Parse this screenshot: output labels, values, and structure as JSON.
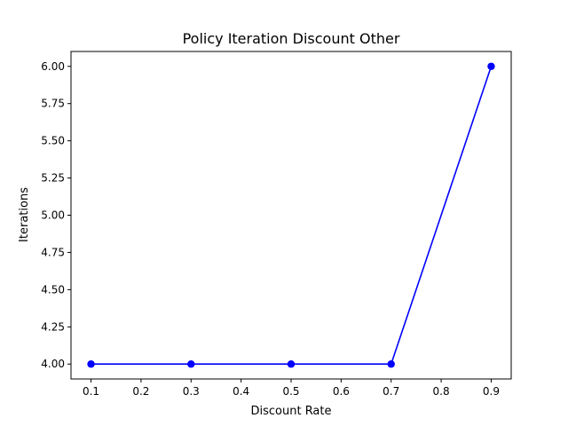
{
  "chart_data": {
    "type": "line",
    "title": "Policy Iteration Discount Other",
    "xlabel": "Discount Rate",
    "ylabel": "Iterations",
    "xlim": [
      0.06,
      0.94
    ],
    "ylim": [
      3.9,
      6.1
    ],
    "xticks": [
      "0.1",
      "0.2",
      "0.3",
      "0.4",
      "0.5",
      "0.6",
      "0.7",
      "0.8",
      "0.9"
    ],
    "yticks": [
      "4.00",
      "4.25",
      "4.50",
      "4.75",
      "5.00",
      "5.25",
      "5.50",
      "5.75",
      "6.00"
    ],
    "grid": false,
    "series": [
      {
        "color": "#0000ff",
        "marker": "circle",
        "x": [
          0.1,
          0.3,
          0.5,
          0.7,
          0.9
        ],
        "y": [
          4,
          4,
          4,
          4,
          6
        ]
      }
    ]
  }
}
